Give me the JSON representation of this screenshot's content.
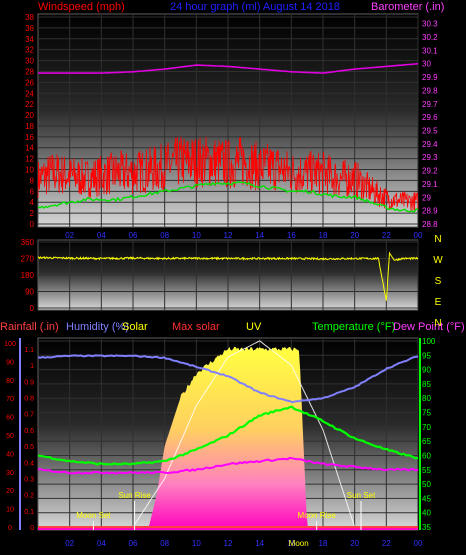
{
  "colors": {
    "background": "#000000",
    "wind": "#ff0000",
    "gust_avg": "#00e000",
    "barometer": "#e000e0",
    "title": "#2020ff",
    "direction": "#ffff00",
    "rainfall": "#ff4040",
    "humidity": "#8080ff",
    "solar": "#ffff00",
    "max_solar": "#ff3030",
    "uv": "#ffff00",
    "temperature": "#00ff00",
    "dew_point": "#ff00ff",
    "axis_left": "#ff0000",
    "axis_right_baro": "#ff40ff",
    "axis_right_temp": "#00ff00",
    "compass": "#ffff00",
    "x_tick": "#3030ff"
  },
  "header": {
    "windspeed_label": "Windspeed (mph)",
    "title": "24 hour graph (ml)   August 14 2018",
    "barometer_label": "Barometer (.in)"
  },
  "panel3_labels": {
    "rainfall": "Rainfall (.in)",
    "humidity": "Humidity (%)",
    "solar": "Solar",
    "max_solar": "Max solar",
    "uv": "UV",
    "temperature": "Temperature (°F)",
    "dew_point": "Dew Point (°F)"
  },
  "events": {
    "moon_set": "Moon Set",
    "sun_rise": "Sun Rise",
    "moon_rise": "Moon Rise",
    "sun_set": "Sun Set",
    "moon": "Moon"
  },
  "compass": [
    "N",
    "W",
    "S",
    "E",
    "N"
  ],
  "chart_data": [
    {
      "type": "line",
      "title": "24 hour graph (ml)   August 14 2018",
      "x_ticks": [
        "02",
        "04",
        "06",
        "08",
        "10",
        "12",
        "14",
        "16",
        "18",
        "20",
        "22",
        "00"
      ],
      "y_left_label": "Windspeed (mph)",
      "y_left_ticks": [
        "0",
        "2",
        "4",
        "6",
        "8",
        "10",
        "12",
        "14",
        "16",
        "18",
        "20",
        "22",
        "24",
        "26",
        "28",
        "30",
        "32",
        "34",
        "36",
        "38"
      ],
      "y_left_range": [
        0,
        38
      ],
      "y_right_label": "Barometer (.in)",
      "y_right_ticks": [
        "28.8",
        "28.9",
        "29",
        "29.1",
        "29.2",
        "29.3",
        "29.4",
        "29.5",
        "29.6",
        "29.7",
        "29.8",
        "29.9",
        "30",
        "30.1",
        "30.2",
        "30.3"
      ],
      "y_right_range": [
        28.8,
        30.35
      ],
      "series": [
        {
          "name": "Windspeed",
          "x": [
            0,
            1,
            2,
            3,
            4,
            5,
            6,
            7,
            8,
            9,
            10,
            11,
            12,
            13,
            14,
            15,
            16,
            17,
            18,
            19,
            20,
            21,
            22,
            23,
            24
          ],
          "values": [
            8,
            9,
            8.5,
            8,
            8.5,
            9,
            9,
            9.5,
            10,
            11,
            11,
            11,
            10.5,
            11,
            10,
            10,
            9,
            9,
            9,
            8,
            8,
            6,
            4.5,
            4,
            4
          ]
        },
        {
          "name": "Gust",
          "x": [
            0,
            1,
            2,
            3,
            4,
            5,
            6,
            7,
            8,
            9,
            10,
            11,
            12,
            13,
            14,
            15,
            16,
            17,
            18,
            19,
            20,
            21,
            22,
            23,
            24
          ],
          "values": [
            3,
            3.5,
            4,
            4.5,
            4.5,
            4.5,
            5,
            5.5,
            6,
            6.5,
            7,
            7.5,
            7.5,
            7.5,
            7,
            6.5,
            6,
            6,
            5.5,
            5,
            5,
            4,
            3,
            2.5,
            2.5
          ]
        },
        {
          "name": "Barometer",
          "x": [
            0,
            2,
            4,
            6,
            8,
            10,
            12,
            14,
            16,
            18,
            20,
            22,
            24
          ],
          "values": [
            29.93,
            29.93,
            29.93,
            29.94,
            29.96,
            29.99,
            29.98,
            29.96,
            29.94,
            29.93,
            29.96,
            29.98,
            30.0
          ]
        }
      ]
    },
    {
      "type": "line",
      "x_ticks": [
        "02",
        "04",
        "06",
        "08",
        "10",
        "12",
        "14",
        "16",
        "18",
        "20",
        "22",
        "00"
      ],
      "y_ticks": [
        "0",
        "90",
        "180",
        "270",
        "360"
      ],
      "y_range": [
        0,
        360
      ],
      "compass_labels": [
        "N",
        "W",
        "S",
        "E",
        "N"
      ],
      "series": [
        {
          "name": "Wind direction",
          "x": [
            0,
            2,
            4,
            6,
            8,
            10,
            12,
            14,
            16,
            18,
            20,
            21.5,
            22,
            22.2,
            22.5,
            23,
            24
          ],
          "values": [
            275,
            272,
            270,
            272,
            270,
            271,
            270,
            270,
            270,
            268,
            270,
            270,
            40,
            300,
            260,
            270,
            270
          ]
        }
      ]
    },
    {
      "type": "area",
      "x_ticks": [
        "02",
        "04",
        "06",
        "08",
        "10",
        "12",
        "14",
        "16",
        "18",
        "20",
        "22",
        "00"
      ],
      "y_left_outer_label": "Rainfall (.in)",
      "y_left_outer_ticks": [
        "0",
        "10",
        "20",
        "30",
        "40",
        "50",
        "60",
        "70",
        "80",
        "90",
        "100"
      ],
      "y_left_inner_ticks": [
        "0",
        "0.1",
        "0.2",
        "0.3",
        "0.4",
        "0.5",
        "0.6",
        "0.7",
        "0.8",
        "0.9",
        "1",
        "1.1"
      ],
      "y_right_ticks": [
        "35",
        "40",
        "45",
        "50",
        "55",
        "60",
        "65",
        "70",
        "75",
        "80",
        "85",
        "90",
        "95",
        "100"
      ],
      "y_right_range": [
        35,
        100
      ],
      "series": [
        {
          "name": "Humidity",
          "x": [
            0,
            2,
            4,
            6,
            8,
            10,
            12,
            14,
            16,
            18,
            20,
            22,
            24
          ],
          "values": [
            92,
            93,
            93,
            93,
            92,
            87,
            82,
            73,
            68,
            70,
            76,
            86,
            93
          ]
        },
        {
          "name": "Temperature",
          "x": [
            0,
            2,
            4,
            6,
            8,
            10,
            12,
            14,
            16,
            18,
            20,
            22,
            24
          ],
          "values": [
            60,
            58,
            57,
            57,
            58,
            62,
            67,
            74,
            77,
            72,
            66,
            62,
            59
          ]
        },
        {
          "name": "Dew Point",
          "x": [
            0,
            2,
            4,
            6,
            8,
            10,
            12,
            14,
            16,
            18,
            20,
            22,
            24
          ],
          "values": [
            55,
            54,
            54,
            54,
            54,
            55,
            57,
            58,
            59,
            57,
            56,
            55,
            55
          ]
        },
        {
          "name": "Max solar",
          "x": [
            0,
            5,
            6,
            8,
            10,
            12,
            14,
            16,
            18,
            19,
            20,
            24
          ],
          "values": [
            0,
            0,
            0,
            0.3,
            0.75,
            1.05,
            1.15,
            1.0,
            0.6,
            0.3,
            0,
            0
          ]
        },
        {
          "name": "Solar",
          "x": [
            0,
            7,
            7.5,
            8,
            9,
            10,
            12,
            14,
            16,
            16.5,
            17,
            24
          ],
          "values": [
            0,
            0,
            0.2,
            0.5,
            0.8,
            0.95,
            1.1,
            1.1,
            1.1,
            1.1,
            0,
            0
          ]
        }
      ],
      "events": [
        {
          "label": "Moon Set",
          "x": 3.5
        },
        {
          "label": "Sun Rise",
          "x": 6.1
        },
        {
          "label": "Moon Rise",
          "x": 17.6
        },
        {
          "label": "Sun Set",
          "x": 20.4
        }
      ]
    }
  ]
}
